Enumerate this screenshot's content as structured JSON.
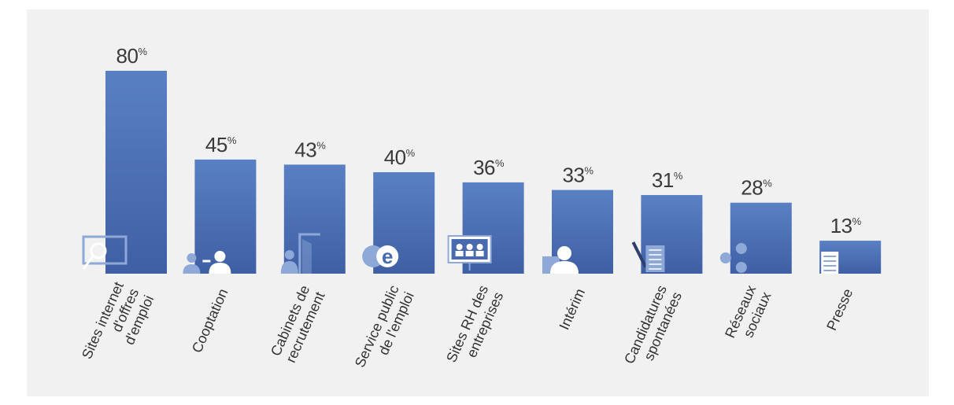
{
  "chart_data": {
    "type": "bar",
    "title": "",
    "xlabel": "",
    "ylabel": "",
    "ylim": [
      0,
      80
    ],
    "value_suffix": "%",
    "grid": false,
    "legend": "none",
    "bar_color_top": "#5a80c4",
    "bar_color_bottom": "#3f5fa4",
    "icon_color": "#8ea8d8",
    "categories": [
      [
        "Sites internet",
        "d'offres",
        "d'emploi"
      ],
      [
        "Cooptation"
      ],
      [
        "Cabinets de",
        "recrutement"
      ],
      [
        "Service public",
        "de l'emploi"
      ],
      [
        "Sites RH des",
        "entreprises"
      ],
      [
        "Intérim"
      ],
      [
        "Candidatures",
        "spontanées"
      ],
      [
        "Réseaux",
        "sociaux"
      ],
      [
        "Presse"
      ]
    ],
    "values": [
      80,
      45,
      43,
      40,
      36,
      33,
      31,
      28,
      13
    ],
    "icons": [
      "magnifier-screen-icon",
      "referral-people-icon",
      "office-door-icon",
      "e-letter-icon",
      "video-conference-icon",
      "temp-worker-icon",
      "application-letter-icon",
      "social-network-icon",
      "newspaper-icon"
    ]
  }
}
